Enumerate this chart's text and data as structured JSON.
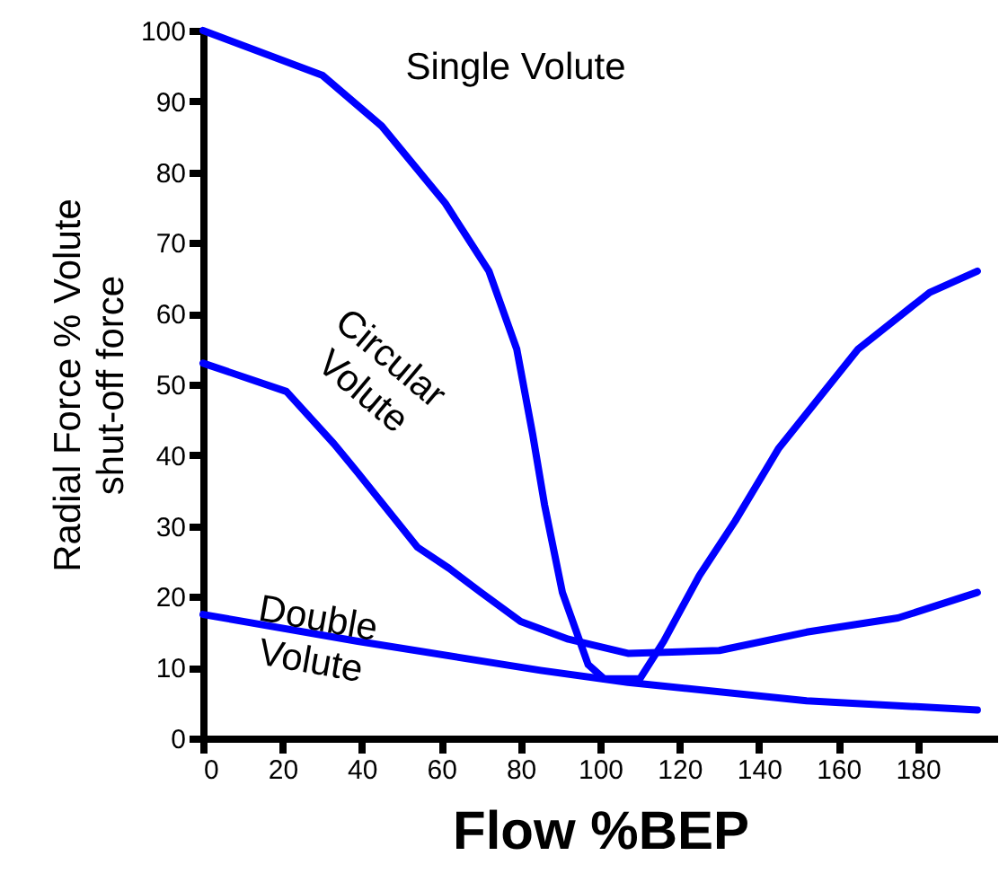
{
  "chart_data": {
    "type": "line",
    "xlabel": "Flow %BEP",
    "ylabel": "Radial Force % Volute\nshut-off force",
    "xlim": [
      0,
      200
    ],
    "xticks": [
      0,
      20,
      40,
      60,
      80,
      100,
      120,
      140,
      160,
      180
    ],
    "ylim": [
      0,
      100
    ],
    "yticks": [
      0,
      10,
      20,
      30,
      40,
      50,
      60,
      70,
      80,
      90,
      100
    ],
    "grid": false,
    "marker": "none",
    "line_style": "solid",
    "series": [
      {
        "color": "#0000ff",
        "x": [
          0,
          30,
          45,
          61,
          72,
          79,
          83,
          86,
          90.5,
          97,
          101,
          110,
          116,
          125,
          134,
          145,
          165,
          183,
          195
        ],
        "values": [
          100,
          93.7,
          86.5,
          75.6,
          66,
          55,
          43,
          33,
          20.6,
          10.4,
          8.4,
          8.4,
          13.7,
          23,
          30.7,
          41,
          55,
          63,
          66
        ]
      },
      {
        "color": "#0000ff",
        "x": [
          0,
          21,
          33,
          39,
          54,
          62,
          70,
          80,
          92,
          107,
          130,
          152,
          175,
          195
        ],
        "values": [
          53,
          49,
          41.6,
          37.5,
          27,
          24,
          20.6,
          16.5,
          14,
          12,
          12.4,
          15,
          17,
          20.6
        ]
      },
      {
        "color": "#0000ff",
        "x": [
          0,
          39,
          85,
          107,
          152,
          195
        ],
        "values": [
          17.5,
          13.7,
          9.6,
          7.9,
          5.3,
          4
        ]
      }
    ],
    "annotations": [
      "Single Volute",
      "Circular\nVolute",
      "Double\nVolute"
    ]
  }
}
